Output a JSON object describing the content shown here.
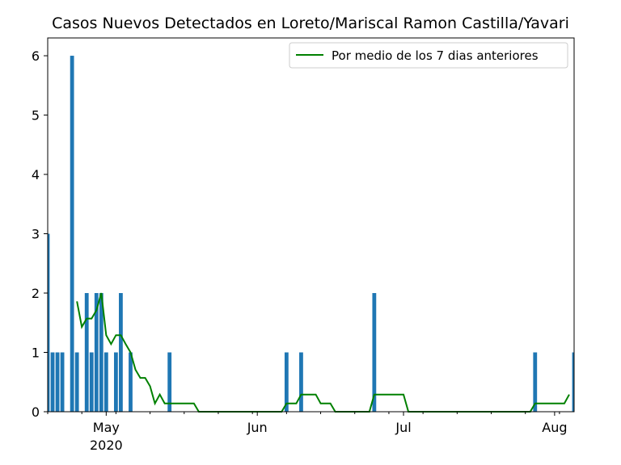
{
  "chart_data": {
    "type": "bar",
    "title": "Casos Nuevos Detectados en Loreto/Mariscal Ramon Castilla/Yavari",
    "xlabel": "",
    "ylabel": "",
    "ylim": [
      0,
      6.3
    ],
    "x_range": [
      "2020-04-19",
      "2020-08-05"
    ],
    "yticks": [
      0,
      1,
      2,
      3,
      4,
      5,
      6
    ],
    "xticks": [
      {
        "date": "2020-05-01",
        "label": "May",
        "sublabel": "2020"
      },
      {
        "date": "2020-06-01",
        "label": "Jun",
        "sublabel": ""
      },
      {
        "date": "2020-07-01",
        "label": "Jul",
        "sublabel": ""
      },
      {
        "date": "2020-08-01",
        "label": "Aug",
        "sublabel": ""
      }
    ],
    "bar_color": "#1f77b4",
    "bars": [
      {
        "x": "2020-04-19",
        "value": 3
      },
      {
        "x": "2020-04-20",
        "value": 1
      },
      {
        "x": "2020-04-21",
        "value": 1
      },
      {
        "x": "2020-04-22",
        "value": 1
      },
      {
        "x": "2020-04-24",
        "value": 6
      },
      {
        "x": "2020-04-25",
        "value": 1
      },
      {
        "x": "2020-04-27",
        "value": 2
      },
      {
        "x": "2020-04-28",
        "value": 1
      },
      {
        "x": "2020-04-29",
        "value": 2
      },
      {
        "x": "2020-04-30",
        "value": 2
      },
      {
        "x": "2020-05-01",
        "value": 1
      },
      {
        "x": "2020-05-03",
        "value": 1
      },
      {
        "x": "2020-05-04",
        "value": 2
      },
      {
        "x": "2020-05-06",
        "value": 1
      },
      {
        "x": "2020-05-14",
        "value": 1
      },
      {
        "x": "2020-06-07",
        "value": 1
      },
      {
        "x": "2020-06-10",
        "value": 1
      },
      {
        "x": "2020-06-25",
        "value": 2
      },
      {
        "x": "2020-07-28",
        "value": 1
      },
      {
        "x": "2020-08-05",
        "value": 1
      }
    ],
    "line": {
      "name": "Por medio de los 7 dias anteriores",
      "color": "#008000",
      "points": [
        [
          "2020-04-25",
          1.86
        ],
        [
          "2020-04-26",
          1.43
        ],
        [
          "2020-04-27",
          1.57
        ],
        [
          "2020-04-28",
          1.57
        ],
        [
          "2020-04-29",
          1.71
        ],
        [
          "2020-04-30",
          2.0
        ],
        [
          "2020-05-01",
          1.29
        ],
        [
          "2020-05-02",
          1.14
        ],
        [
          "2020-05-03",
          1.29
        ],
        [
          "2020-05-04",
          1.29
        ],
        [
          "2020-05-05",
          1.14
        ],
        [
          "2020-05-06",
          1.0
        ],
        [
          "2020-05-07",
          0.71
        ],
        [
          "2020-05-08",
          0.57
        ],
        [
          "2020-05-09",
          0.57
        ],
        [
          "2020-05-10",
          0.43
        ],
        [
          "2020-05-11",
          0.14
        ],
        [
          "2020-05-12",
          0.29
        ],
        [
          "2020-05-13",
          0.14
        ],
        [
          "2020-05-14",
          0.14
        ],
        [
          "2020-05-15",
          0.14
        ],
        [
          "2020-05-16",
          0.14
        ],
        [
          "2020-05-17",
          0.14
        ],
        [
          "2020-05-18",
          0.14
        ],
        [
          "2020-05-19",
          0.14
        ],
        [
          "2020-05-20",
          0.0
        ],
        [
          "2020-06-06",
          0.0
        ],
        [
          "2020-06-07",
          0.14
        ],
        [
          "2020-06-08",
          0.14
        ],
        [
          "2020-06-09",
          0.14
        ],
        [
          "2020-06-10",
          0.29
        ],
        [
          "2020-06-11",
          0.29
        ],
        [
          "2020-06-12",
          0.29
        ],
        [
          "2020-06-13",
          0.29
        ],
        [
          "2020-06-14",
          0.14
        ],
        [
          "2020-06-15",
          0.14
        ],
        [
          "2020-06-16",
          0.14
        ],
        [
          "2020-06-17",
          0.0
        ],
        [
          "2020-06-24",
          0.0
        ],
        [
          "2020-06-25",
          0.29
        ],
        [
          "2020-06-26",
          0.29
        ],
        [
          "2020-06-27",
          0.29
        ],
        [
          "2020-06-28",
          0.29
        ],
        [
          "2020-06-29",
          0.29
        ],
        [
          "2020-06-30",
          0.29
        ],
        [
          "2020-07-01",
          0.29
        ],
        [
          "2020-07-02",
          0.0
        ],
        [
          "2020-07-27",
          0.0
        ],
        [
          "2020-07-28",
          0.14
        ],
        [
          "2020-07-29",
          0.14
        ],
        [
          "2020-07-30",
          0.14
        ],
        [
          "2020-07-31",
          0.14
        ],
        [
          "2020-08-01",
          0.14
        ],
        [
          "2020-08-02",
          0.14
        ],
        [
          "2020-08-03",
          0.14
        ],
        [
          "2020-08-04",
          0.29
        ]
      ]
    },
    "legend": {
      "position": "top-right"
    },
    "grid": false
  }
}
